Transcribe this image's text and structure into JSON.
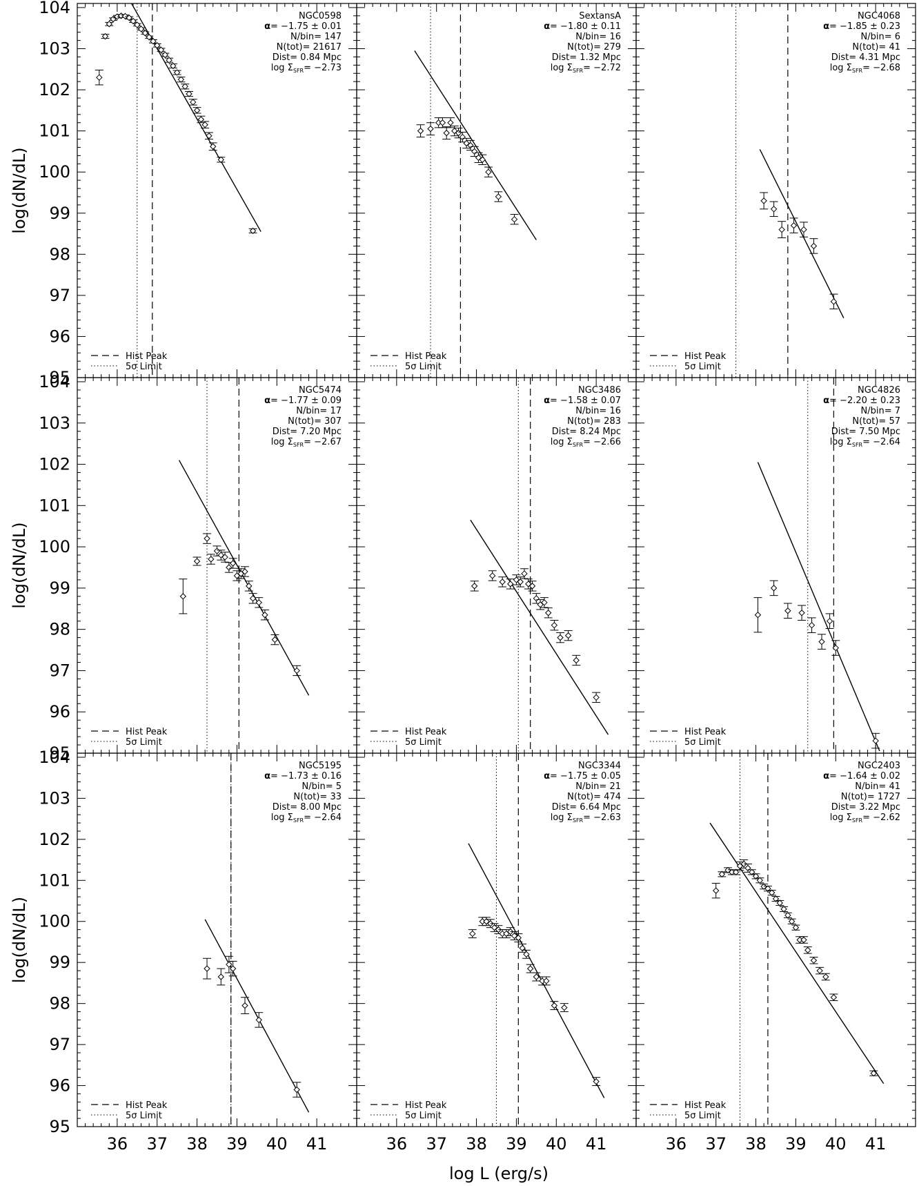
{
  "figure": {
    "xlabel": "log L (erg/s)",
    "ylabel": "log(dN/dL)",
    "legend_hist": "Hist Peak",
    "legend_limit": "5σ Limit",
    "xticks": [
      "36",
      "37",
      "38",
      "39",
      "40",
      "41"
    ],
    "yticks": [
      "95",
      "96",
      "97",
      "98",
      "99",
      "100",
      "101",
      "102",
      "103",
      "104"
    ]
  },
  "chart_data": [
    {
      "type": "scatter",
      "name": "NGC0598",
      "xlim": [
        35,
        42
      ],
      "ylim": [
        95,
        104.1
      ],
      "alpha": "−1.75 ± 0.01",
      "nbin": "147",
      "ntot": "21617",
      "dist": "0.84 Mpc",
      "sfr": "−2.73",
      "hist_peak": 36.88,
      "limit_5sigma": 36.5,
      "fit": [
        [
          36.3,
          104.2
        ],
        [
          39.6,
          98.55
        ]
      ],
      "points": [
        [
          35.55,
          102.3,
          0.18
        ],
        [
          35.7,
          103.3,
          0.05
        ],
        [
          35.8,
          103.6,
          0.04
        ],
        [
          35.9,
          103.72,
          0.03
        ],
        [
          36.0,
          103.78,
          0.03
        ],
        [
          36.1,
          103.8,
          0.03
        ],
        [
          36.2,
          103.79,
          0.03
        ],
        [
          36.3,
          103.75,
          0.03
        ],
        [
          36.4,
          103.67,
          0.03
        ],
        [
          36.5,
          103.58,
          0.03
        ],
        [
          36.6,
          103.48,
          0.03
        ],
        [
          36.7,
          103.38,
          0.03
        ],
        [
          36.8,
          103.28,
          0.03
        ],
        [
          36.9,
          103.18,
          0.04
        ],
        [
          37.0,
          103.08,
          0.04
        ],
        [
          37.1,
          102.97,
          0.04
        ],
        [
          37.2,
          102.85,
          0.04
        ],
        [
          37.3,
          102.72,
          0.05
        ],
        [
          37.4,
          102.58,
          0.05
        ],
        [
          37.5,
          102.42,
          0.05
        ],
        [
          37.6,
          102.25,
          0.06
        ],
        [
          37.7,
          102.08,
          0.06
        ],
        [
          37.8,
          101.9,
          0.06
        ],
        [
          37.9,
          101.7,
          0.07
        ],
        [
          38.0,
          101.5,
          0.07
        ],
        [
          38.1,
          101.28,
          0.08
        ],
        [
          38.2,
          101.15,
          0.08
        ],
        [
          38.3,
          100.88,
          0.08
        ],
        [
          38.4,
          100.62,
          0.09
        ],
        [
          38.6,
          100.3,
          0.06
        ],
        [
          39.4,
          98.57,
          0.05
        ]
      ]
    },
    {
      "type": "scatter",
      "name": "SextansA",
      "xlim": [
        35,
        42
      ],
      "ylim": [
        95,
        104.1
      ],
      "alpha": "−1.80 ± 0.11",
      "nbin": "16",
      "ntot": "279",
      "dist": "1.32 Mpc",
      "sfr": "−2.72",
      "hist_peak": 37.6,
      "limit_5sigma": 36.85,
      "fit": [
        [
          36.45,
          102.95
        ],
        [
          39.5,
          98.35
        ]
      ],
      "points": [
        [
          36.6,
          101.0,
          0.15
        ],
        [
          36.85,
          101.05,
          0.15
        ],
        [
          37.05,
          101.2,
          0.12
        ],
        [
          37.15,
          101.2,
          0.12
        ],
        [
          37.25,
          100.95,
          0.15
        ],
        [
          37.35,
          101.2,
          0.12
        ],
        [
          37.45,
          101.0,
          0.12
        ],
        [
          37.55,
          100.95,
          0.12
        ],
        [
          37.65,
          100.85,
          0.12
        ],
        [
          37.75,
          100.7,
          0.12
        ],
        [
          37.85,
          100.65,
          0.12
        ],
        [
          37.95,
          100.5,
          0.12
        ],
        [
          38.05,
          100.35,
          0.12
        ],
        [
          38.15,
          100.3,
          0.12
        ],
        [
          38.3,
          100.0,
          0.12
        ],
        [
          38.55,
          99.4,
          0.12
        ],
        [
          38.95,
          98.85,
          0.12
        ]
      ]
    },
    {
      "type": "scatter",
      "name": "NGC4068",
      "xlim": [
        35,
        42
      ],
      "ylim": [
        95,
        104.1
      ],
      "alpha": "−1.85 ± 0.23",
      "nbin": "6",
      "ntot": "41",
      "dist": "4.31 Mpc",
      "sfr": "−2.68",
      "hist_peak": 38.8,
      "limit_5sigma": 37.5,
      "fit": [
        [
          38.1,
          100.55
        ],
        [
          40.2,
          96.45
        ]
      ],
      "points": [
        [
          38.2,
          99.3,
          0.2
        ],
        [
          38.45,
          99.1,
          0.18
        ],
        [
          38.65,
          98.6,
          0.2
        ],
        [
          38.95,
          98.7,
          0.18
        ],
        [
          39.2,
          98.6,
          0.18
        ],
        [
          39.45,
          98.2,
          0.18
        ],
        [
          39.95,
          96.85,
          0.18
        ]
      ]
    },
    {
      "type": "scatter",
      "name": "NGC5474",
      "xlim": [
        35,
        42
      ],
      "ylim": [
        95,
        104.1
      ],
      "alpha": "−1.77 ± 0.09",
      "nbin": "17",
      "ntot": "307",
      "dist": "7.20 Mpc",
      "sfr": "−2.67",
      "hist_peak": 39.05,
      "limit_5sigma": 38.25,
      "fit": [
        [
          37.55,
          102.1
        ],
        [
          40.8,
          96.4
        ]
      ],
      "points": [
        [
          37.65,
          98.8,
          0.42
        ],
        [
          38.0,
          99.65,
          0.1
        ],
        [
          38.25,
          100.2,
          0.12
        ],
        [
          38.35,
          99.7,
          0.12
        ],
        [
          38.5,
          99.9,
          0.12
        ],
        [
          38.6,
          99.8,
          0.12
        ],
        [
          38.7,
          99.75,
          0.12
        ],
        [
          38.8,
          99.5,
          0.12
        ],
        [
          38.9,
          99.6,
          0.12
        ],
        [
          39.0,
          99.3,
          0.12
        ],
        [
          39.1,
          99.35,
          0.12
        ],
        [
          39.2,
          99.4,
          0.12
        ],
        [
          39.3,
          99.05,
          0.12
        ],
        [
          39.4,
          98.75,
          0.12
        ],
        [
          39.55,
          98.65,
          0.12
        ],
        [
          39.7,
          98.35,
          0.12
        ],
        [
          39.95,
          97.75,
          0.12
        ],
        [
          40.5,
          97.0,
          0.12
        ]
      ]
    },
    {
      "type": "scatter",
      "name": "NGC3486",
      "xlim": [
        35,
        42
      ],
      "ylim": [
        95,
        104.1
      ],
      "alpha": "−1.58 ± 0.07",
      "nbin": "16",
      "ntot": "283",
      "dist": "8.24 Mpc",
      "sfr": "−2.66",
      "hist_peak": 39.35,
      "limit_5sigma": 39.05,
      "fit": [
        [
          37.85,
          100.65
        ],
        [
          41.3,
          95.45
        ]
      ],
      "points": [
        [
          37.95,
          99.05,
          0.12
        ],
        [
          38.4,
          99.3,
          0.12
        ],
        [
          38.65,
          99.15,
          0.12
        ],
        [
          38.85,
          99.1,
          0.12
        ],
        [
          39.0,
          99.2,
          0.12
        ],
        [
          39.1,
          99.15,
          0.12
        ],
        [
          39.2,
          99.35,
          0.12
        ],
        [
          39.3,
          99.1,
          0.12
        ],
        [
          39.4,
          99.05,
          0.12
        ],
        [
          39.5,
          98.75,
          0.12
        ],
        [
          39.6,
          98.6,
          0.12
        ],
        [
          39.7,
          98.65,
          0.12
        ],
        [
          39.8,
          98.4,
          0.12
        ],
        [
          39.95,
          98.1,
          0.12
        ],
        [
          40.1,
          97.8,
          0.12
        ],
        [
          40.3,
          97.85,
          0.12
        ],
        [
          40.5,
          97.25,
          0.12
        ],
        [
          41.0,
          96.35,
          0.12
        ]
      ]
    },
    {
      "type": "scatter",
      "name": "NGC4826",
      "xlim": [
        35,
        42
      ],
      "ylim": [
        95,
        104.1
      ],
      "alpha": "−2.20 ± 0.23",
      "nbin": "7",
      "ntot": "57",
      "dist": "7.50 Mpc",
      "sfr": "−2.64",
      "hist_peak": 39.95,
      "limit_5sigma": 39.3,
      "fit": [
        [
          38.05,
          102.05
        ],
        [
          41.1,
          95.05
        ]
      ],
      "points": [
        [
          38.05,
          98.35,
          0.42
        ],
        [
          38.45,
          99.0,
          0.18
        ],
        [
          38.8,
          98.45,
          0.18
        ],
        [
          39.15,
          98.4,
          0.18
        ],
        [
          39.4,
          98.1,
          0.18
        ],
        [
          39.65,
          97.7,
          0.18
        ],
        [
          39.85,
          98.2,
          0.18
        ],
        [
          40.0,
          97.55,
          0.18
        ],
        [
          41.0,
          95.3,
          0.18
        ]
      ]
    },
    {
      "type": "scatter",
      "name": "NGC5195",
      "xlim": [
        35,
        42
      ],
      "ylim": [
        95,
        104.1
      ],
      "alpha": "−1.73 ± 0.16",
      "nbin": "5",
      "ntot": "33",
      "dist": "8.00 Mpc",
      "sfr": "−2.64",
      "hist_peak": 38.85,
      "limit_5sigma": 38.85,
      "fit": [
        [
          38.2,
          100.05
        ],
        [
          40.8,
          95.35
        ]
      ],
      "points": [
        [
          38.25,
          98.85,
          0.25
        ],
        [
          38.6,
          98.65,
          0.2
        ],
        [
          38.8,
          98.95,
          0.2
        ],
        [
          38.9,
          98.85,
          0.18
        ],
        [
          39.2,
          97.95,
          0.2
        ],
        [
          39.55,
          97.6,
          0.18
        ],
        [
          40.5,
          95.9,
          0.18
        ]
      ]
    },
    {
      "type": "scatter",
      "name": "NGC3344",
      "xlim": [
        35,
        42
      ],
      "ylim": [
        95,
        104.1
      ],
      "alpha": "−1.75 ± 0.05",
      "nbin": "21",
      "ntot": "474",
      "dist": "6.64 Mpc",
      "sfr": "−2.63",
      "hist_peak": 39.05,
      "limit_5sigma": 38.5,
      "fit": [
        [
          37.8,
          101.9
        ],
        [
          41.2,
          95.7
        ]
      ],
      "points": [
        [
          37.9,
          99.7,
          0.1
        ],
        [
          38.15,
          100.0,
          0.1
        ],
        [
          38.25,
          100.0,
          0.1
        ],
        [
          38.35,
          99.95,
          0.1
        ],
        [
          38.45,
          99.85,
          0.1
        ],
        [
          38.55,
          99.8,
          0.1
        ],
        [
          38.65,
          99.7,
          0.1
        ],
        [
          38.75,
          99.7,
          0.1
        ],
        [
          38.85,
          99.75,
          0.1
        ],
        [
          38.95,
          99.65,
          0.1
        ],
        [
          39.05,
          99.6,
          0.1
        ],
        [
          39.15,
          99.35,
          0.1
        ],
        [
          39.25,
          99.2,
          0.1
        ],
        [
          39.35,
          98.85,
          0.1
        ],
        [
          39.5,
          98.65,
          0.1
        ],
        [
          39.65,
          98.55,
          0.1
        ],
        [
          39.75,
          98.55,
          0.1
        ],
        [
          39.95,
          97.95,
          0.1
        ],
        [
          40.2,
          97.9,
          0.1
        ],
        [
          41.0,
          96.1,
          0.1
        ]
      ]
    },
    {
      "type": "scatter",
      "name": "NGC2403",
      "xlim": [
        35,
        42
      ],
      "ylim": [
        95,
        104.1
      ],
      "alpha": "−1.64 ± 0.02",
      "nbin": "41",
      "ntot": "1727",
      "dist": "3.22 Mpc",
      "sfr": "−2.62",
      "hist_peak": 38.3,
      "limit_5sigma": 37.6,
      "fit": [
        [
          36.85,
          102.4
        ],
        [
          41.2,
          96.05
        ]
      ],
      "points": [
        [
          37.0,
          100.75,
          0.18
        ],
        [
          37.15,
          101.15,
          0.06
        ],
        [
          37.3,
          101.25,
          0.06
        ],
        [
          37.4,
          101.2,
          0.06
        ],
        [
          37.5,
          101.2,
          0.06
        ],
        [
          37.6,
          101.35,
          0.1
        ],
        [
          37.7,
          101.4,
          0.1
        ],
        [
          37.8,
          101.3,
          0.1
        ],
        [
          37.9,
          101.2,
          0.06
        ],
        [
          38.0,
          101.1,
          0.06
        ],
        [
          38.1,
          101.0,
          0.06
        ],
        [
          38.2,
          100.85,
          0.06
        ],
        [
          38.3,
          100.8,
          0.06
        ],
        [
          38.4,
          100.7,
          0.06
        ],
        [
          38.5,
          100.55,
          0.06
        ],
        [
          38.6,
          100.45,
          0.06
        ],
        [
          38.7,
          100.3,
          0.06
        ],
        [
          38.8,
          100.15,
          0.06
        ],
        [
          38.9,
          100.0,
          0.06
        ],
        [
          39.0,
          99.85,
          0.06
        ],
        [
          39.1,
          99.55,
          0.08
        ],
        [
          39.2,
          99.55,
          0.08
        ],
        [
          39.3,
          99.3,
          0.08
        ],
        [
          39.45,
          99.05,
          0.08
        ],
        [
          39.6,
          98.8,
          0.08
        ],
        [
          39.75,
          98.65,
          0.08
        ],
        [
          39.95,
          98.15,
          0.08
        ],
        [
          40.95,
          96.3,
          0.06
        ]
      ]
    }
  ]
}
